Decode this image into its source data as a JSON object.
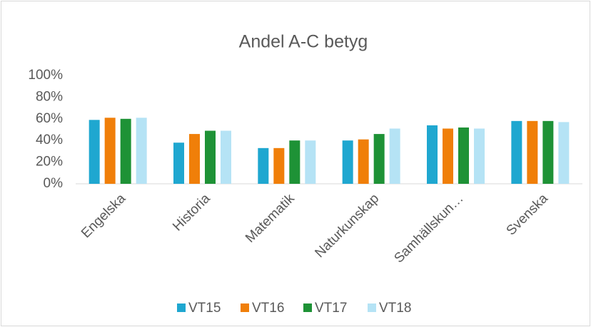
{
  "chart_data": {
    "type": "bar",
    "title": "Andel A-C betyg",
    "categories": [
      "Engelska",
      "Historia",
      "Matematik",
      "Naturkunskap",
      "Samhällskun…",
      "Svenska"
    ],
    "series": [
      {
        "name": "VT15",
        "color": "#1fa7d0",
        "values": [
          59,
          38,
          33,
          40,
          54,
          58
        ]
      },
      {
        "name": "VT16",
        "color": "#f07f09",
        "values": [
          61,
          46,
          33,
          41,
          51,
          58
        ]
      },
      {
        "name": "VT17",
        "color": "#1e9236",
        "values": [
          60,
          49,
          40,
          46,
          52,
          58
        ]
      },
      {
        "name": "VT18",
        "color": "#b5e3f5",
        "values": [
          61,
          49,
          40,
          51,
          51,
          57
        ]
      }
    ],
    "ylim": [
      0,
      100
    ],
    "yticks": [
      {
        "value": 0,
        "label": "0%"
      },
      {
        "value": 20,
        "label": "20%"
      },
      {
        "value": 40,
        "label": "40%"
      },
      {
        "value": 60,
        "label": "60%"
      },
      {
        "value": 80,
        "label": "80%"
      },
      {
        "value": 100,
        "label": "100%"
      }
    ],
    "grid": false,
    "legend": "bottom"
  }
}
